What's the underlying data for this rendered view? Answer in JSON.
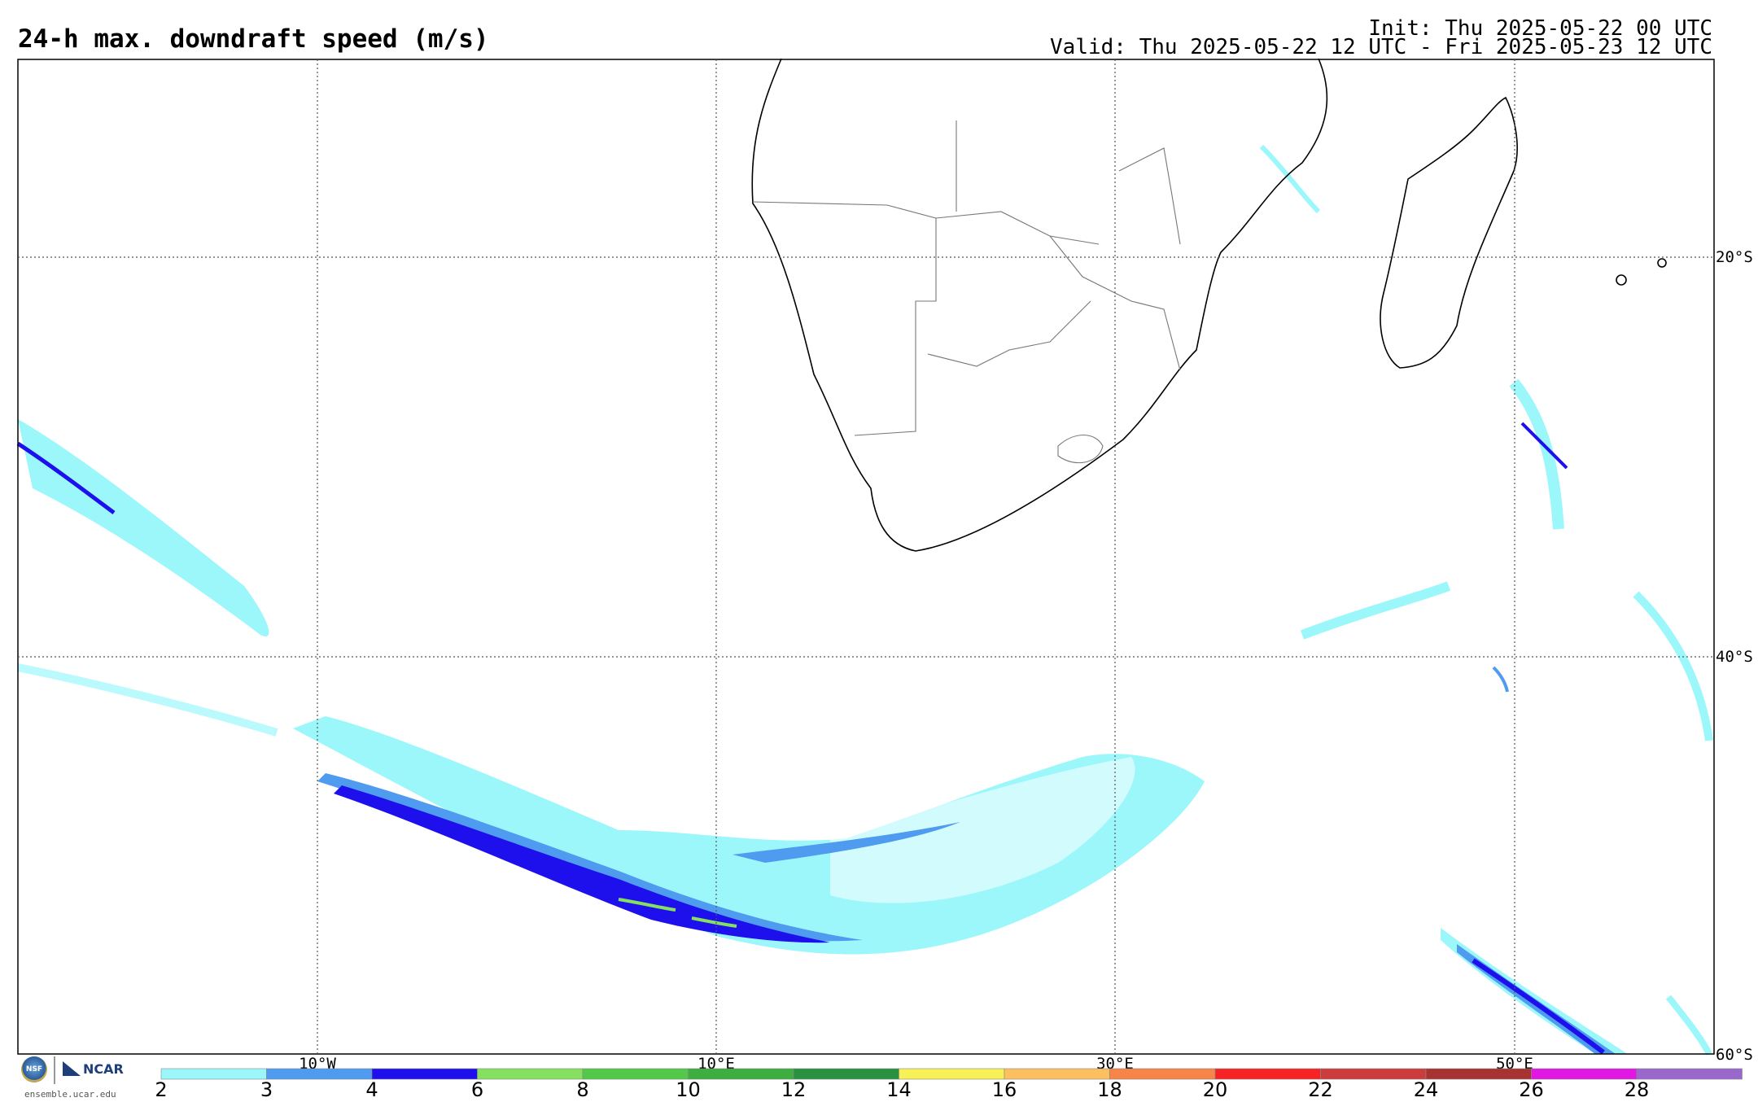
{
  "header": {
    "title": "24-h max. downdraft speed (m/s)",
    "init": "Init: Thu 2025-05-22 00 UTC",
    "valid": "Valid: Thu 2025-05-22 12 UTC - Fri 2025-05-23 12 UTC"
  },
  "map": {
    "lat_labels": [
      "20°S",
      "40°S",
      "60°S"
    ],
    "lon_labels": [
      "10°W",
      "10°E",
      "30°E",
      "50°E"
    ]
  },
  "colorbar": {
    "labels": [
      "2",
      "3",
      "4",
      "6",
      "8",
      "10",
      "12",
      "14",
      "16",
      "18",
      "20",
      "22",
      "24",
      "26",
      "28"
    ],
    "colors": [
      "#9cf7fb",
      "#4f9bf0",
      "#1e10ec",
      "#86e060",
      "#53c94a",
      "#3eae40",
      "#2a9142",
      "#f7f056",
      "#fcc060",
      "#f78448",
      "#f52323",
      "#cc3c3c",
      "#a83232",
      "#e117e3",
      "#9a68cc"
    ]
  },
  "footer": {
    "nsf_logo": "NSF",
    "ncar_logo": "NCAR",
    "site": "ensemble.ucar.edu"
  }
}
